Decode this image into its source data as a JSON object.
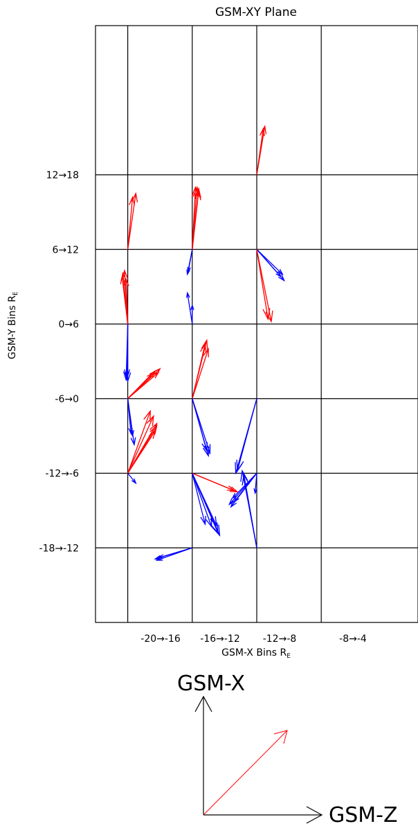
{
  "chart_data": {
    "type": "quiver",
    "title": "GSM-XY Plane",
    "xlabel": "GSM-X Bins R",
    "xlabel_subscript": "E",
    "ylabel": "GSM-Y Bins R",
    "ylabel_subscript": "E",
    "x_categories": [
      "-20→-16",
      "-16→-12",
      "-12→-8",
      "-8→-4"
    ],
    "y_categories": [
      "-18→-12",
      "-12→-6",
      "-6→0",
      "0→6",
      "6→12",
      "12→18"
    ],
    "grid": true,
    "vector_scale_units": "R_E",
    "colors": {
      "red_vectors": "#ff0000",
      "blue_vectors": "#0000ff",
      "axes": "#000000"
    },
    "vectors": [
      {
        "color": "red",
        "x": -20,
        "y": 6,
        "dx": 0.5,
        "dy": 4.5
      },
      {
        "color": "red",
        "x": -20,
        "y": 6,
        "dx": 0.3,
        "dy": 4.2
      },
      {
        "color": "red",
        "x": -16,
        "y": 6,
        "dx": 0.4,
        "dy": 4.9
      },
      {
        "color": "red",
        "x": -16,
        "y": 6,
        "dx": 0.3,
        "dy": 5.0
      },
      {
        "color": "red",
        "x": -16,
        "y": 6,
        "dx": 0.2,
        "dy": 5.0
      },
      {
        "color": "red",
        "x": -16,
        "y": 6,
        "dx": 0.4,
        "dy": 4.7
      },
      {
        "color": "red",
        "x": -12,
        "y": 12,
        "dx": 0.5,
        "dy": 3.9
      },
      {
        "color": "red",
        "x": -12,
        "y": 12,
        "dx": 0.4,
        "dy": 3.7
      },
      {
        "color": "red",
        "x": -20,
        "y": 0,
        "dx": -0.3,
        "dy": 4.1
      },
      {
        "color": "red",
        "x": -20,
        "y": 0,
        "dx": -0.2,
        "dy": 4.3
      },
      {
        "color": "red",
        "x": -20,
        "y": 0,
        "dx": -0.1,
        "dy": 3.6
      },
      {
        "color": "red",
        "x": -20,
        "y": 0,
        "dx": -0.35,
        "dy": 3.8
      },
      {
        "color": "blue",
        "x": -16,
        "y": 6,
        "dx": -0.3,
        "dy": -2.0
      },
      {
        "color": "blue",
        "x": -16,
        "y": 6,
        "dx": -0.25,
        "dy": -1.8
      },
      {
        "color": "blue",
        "x": -16,
        "y": 0,
        "dx": -0.3,
        "dy": 2.5
      },
      {
        "color": "blue",
        "x": -16,
        "y": 0,
        "dx": 0.0,
        "dy": 1.5
      },
      {
        "color": "blue",
        "x": -12,
        "y": 6,
        "dx": 1.6,
        "dy": -2.0
      },
      {
        "color": "blue",
        "x": -12,
        "y": 6,
        "dx": 1.5,
        "dy": -2.2
      },
      {
        "color": "blue",
        "x": -12,
        "y": 6,
        "dx": 1.7,
        "dy": -2.5
      },
      {
        "color": "red",
        "x": -12,
        "y": 6,
        "dx": 0.9,
        "dy": -5.8
      },
      {
        "color": "red",
        "x": -12,
        "y": 6,
        "dx": 0.7,
        "dy": -5.6
      },
      {
        "color": "blue",
        "x": -20,
        "y": 0,
        "dx": 0.0,
        "dy": -4.6
      },
      {
        "color": "blue",
        "x": -20,
        "y": 0,
        "dx": -0.1,
        "dy": -4.5
      },
      {
        "color": "blue",
        "x": -20,
        "y": 0,
        "dx": -0.05,
        "dy": -4.3
      },
      {
        "color": "red",
        "x": -20,
        "y": -6,
        "dx": 2.0,
        "dy": 2.4
      },
      {
        "color": "red",
        "x": -20,
        "y": -6,
        "dx": 1.9,
        "dy": 2.1
      },
      {
        "color": "red",
        "x": -20,
        "y": -6,
        "dx": 1.7,
        "dy": 2.2
      },
      {
        "color": "red",
        "x": -20,
        "y": -6,
        "dx": 1.5,
        "dy": 2.0
      },
      {
        "color": "red",
        "x": -16,
        "y": -6,
        "dx": 0.9,
        "dy": 4.7
      },
      {
        "color": "red",
        "x": -16,
        "y": -6,
        "dx": 0.8,
        "dy": 4.4
      },
      {
        "color": "red",
        "x": -16,
        "y": -6,
        "dx": 1.0,
        "dy": 4.0
      },
      {
        "color": "blue",
        "x": -20,
        "y": -6,
        "dx": 0.3,
        "dy": -3.0
      },
      {
        "color": "blue",
        "x": -20,
        "y": -6,
        "dx": 0.4,
        "dy": -3.7
      },
      {
        "color": "blue",
        "x": -20,
        "y": -6,
        "dx": 0.2,
        "dy": -2.8
      },
      {
        "color": "blue",
        "x": -16,
        "y": -6,
        "dx": 1.0,
        "dy": -4.6
      },
      {
        "color": "blue",
        "x": -16,
        "y": -6,
        "dx": 0.9,
        "dy": -4.2
      },
      {
        "color": "blue",
        "x": -16,
        "y": -6,
        "dx": 1.1,
        "dy": -4.4
      },
      {
        "color": "blue",
        "x": -12,
        "y": -6,
        "dx": -1.3,
        "dy": -6.0
      },
      {
        "color": "blue",
        "x": -12,
        "y": -6,
        "dx": -1.2,
        "dy": -5.8
      },
      {
        "color": "red",
        "x": -20,
        "y": -12,
        "dx": 1.7,
        "dy": 3.4
      },
      {
        "color": "red",
        "x": -20,
        "y": -12,
        "dx": 1.8,
        "dy": 4.0
      },
      {
        "color": "red",
        "x": -20,
        "y": -12,
        "dx": 1.6,
        "dy": 4.6
      },
      {
        "color": "red",
        "x": -20,
        "y": -12,
        "dx": 1.4,
        "dy": 5.0
      },
      {
        "color": "red",
        "x": -20,
        "y": -12,
        "dx": 1.8,
        "dy": 3.8
      },
      {
        "color": "blue",
        "x": -20,
        "y": -12,
        "dx": 0.5,
        "dy": -0.8
      },
      {
        "color": "red",
        "x": -16,
        "y": -12,
        "dx": 2.8,
        "dy": -1.5
      },
      {
        "color": "red",
        "x": -16,
        "y": -12,
        "dx": 2.6,
        "dy": -1.4
      },
      {
        "color": "blue",
        "x": -16,
        "y": -12,
        "dx": 1.6,
        "dy": -4.8
      },
      {
        "color": "blue",
        "x": -16,
        "y": -12,
        "dx": 1.5,
        "dy": -4.2
      },
      {
        "color": "blue",
        "x": -16,
        "y": -12,
        "dx": 1.2,
        "dy": -4.3
      },
      {
        "color": "blue",
        "x": -16,
        "y": -12,
        "dx": 1.7,
        "dy": -5.0
      },
      {
        "color": "blue",
        "x": -16,
        "y": -12,
        "dx": 0.8,
        "dy": -4.1
      },
      {
        "color": "blue",
        "x": -12,
        "y": -12,
        "dx": -1.6,
        "dy": -2.7
      },
      {
        "color": "blue",
        "x": -12,
        "y": -12,
        "dx": -1.7,
        "dy": -2.5
      },
      {
        "color": "blue",
        "x": -12,
        "y": -12,
        "dx": -1.4,
        "dy": -2.3
      },
      {
        "color": "blue",
        "x": -12,
        "y": -12,
        "dx": -1.5,
        "dy": -2.0
      },
      {
        "color": "blue",
        "x": -12,
        "y": -12,
        "dx": -0.1,
        "dy": -1.6
      },
      {
        "color": "blue",
        "x": -12,
        "y": -18,
        "dx": -0.9,
        "dy": 6.2
      },
      {
        "color": "blue",
        "x": -12,
        "y": -18,
        "dx": -0.8,
        "dy": 5.9
      },
      {
        "color": "blue",
        "x": -16,
        "y": -18,
        "dx": -2.3,
        "dy": -0.9
      },
      {
        "color": "blue",
        "x": -16,
        "y": -18,
        "dx": -2.2,
        "dy": -1.0
      },
      {
        "color": "blue",
        "x": -16,
        "y": -18,
        "dx": -2.1,
        "dy": -0.8
      }
    ]
  },
  "legend": {
    "up_label": "GSM-X",
    "right_label": "GSM-Z",
    "color_axes": "#000000",
    "color_diag": "#ff0000"
  }
}
